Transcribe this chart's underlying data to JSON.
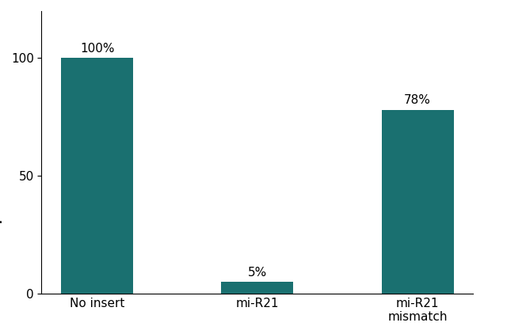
{
  "categories": [
    "No insert",
    "mi-R21",
    "mi-R21\nmismatch"
  ],
  "values": [
    100,
    5,
    78
  ],
  "labels": [
    "100%",
    "5%",
    "78%"
  ],
  "bar_color": "#1a7070",
  "ylim": [
    0,
    120
  ],
  "yticks": [
    0,
    50,
    100
  ],
  "bar_width": 0.45,
  "background_color": "#ffffff",
  "label_fontsize": 11,
  "tick_fontsize": 11,
  "ylabel_fontsize": 10.5
}
